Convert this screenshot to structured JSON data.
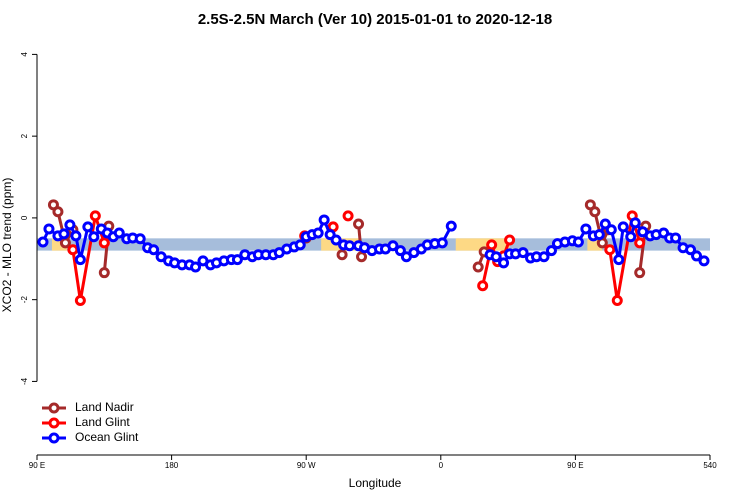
{
  "chart_data": {
    "type": "line",
    "title": "2.5S-2.5N March (Ver 10)   2015-01-01 to 2020-12-18",
    "x_label": "Longitude",
    "y_label": "XCO2 - MLO trend (ppm)",
    "xlim": [
      90,
      540
    ],
    "ylim": [
      -5.8,
      4.45
    ],
    "xticks": [
      {
        "value": 90,
        "label": "90 E"
      },
      180,
      {
        "value": 270,
        "label": "90 W"
      },
      {
        "value": 360,
        "label": "0"
      },
      {
        "value": 450,
        "label": "90 E"
      },
      540
    ],
    "yticks": [
      -4,
      -2,
      0,
      2,
      4
    ],
    "legend": "bottom-left",
    "band": {
      "ylim": [
        -0.5,
        -0.8
      ],
      "color": "#a6bddb",
      "highlight_color": "#fdd985",
      "highlights": [
        [
          100,
          110
        ],
        [
          280,
          306
        ],
        [
          370,
          406
        ],
        [
          458,
          468
        ]
      ]
    },
    "series": [
      {
        "name": "Land Nadir",
        "color": "#a52a2a",
        "x": [
          101,
          104,
          109,
          114,
          null,
          135,
          138,
          null,
          270,
          null,
          294,
          null,
          305,
          307,
          null,
          385,
          389,
          null,
          460,
          463,
          468,
          472,
          null,
          493,
          497
        ],
        "values": [
          0.32,
          0.15,
          -0.61,
          -0.29,
          null,
          -1.34,
          -0.2,
          null,
          -0.49,
          null,
          -0.9,
          null,
          -0.15,
          -0.95,
          null,
          -1.2,
          -0.83,
          null,
          0.32,
          0.15,
          -0.61,
          -0.29,
          null,
          -1.34,
          -0.2
        ]
      },
      {
        "name": "Land Glint",
        "color": "#ff0000",
        "x": [
          114,
          119,
          129,
          135,
          null,
          269,
          null,
          288,
          null,
          298,
          null,
          309,
          null,
          388,
          394,
          398,
          402,
          406,
          null,
          473,
          478,
          488,
          493
        ],
        "values": [
          -0.78,
          -2.02,
          0.05,
          -0.61,
          null,
          -0.44,
          null,
          -0.22,
          null,
          0.05,
          null,
          -0.73,
          null,
          -1.66,
          -0.66,
          -1.07,
          -0.93,
          -0.54,
          null,
          -0.78,
          -2.02,
          0.05,
          -0.61
        ]
      },
      {
        "name": "Ocean Glint",
        "color": "#0000ff",
        "x": [
          94,
          98,
          104,
          108,
          112,
          116,
          119,
          124,
          128,
          133,
          137,
          141,
          145,
          150,
          154,
          159,
          164,
          168,
          173,
          178,
          182,
          187,
          192,
          196,
          201,
          206,
          210,
          215,
          220,
          224,
          229,
          234,
          238,
          243,
          248,
          252,
          257,
          262,
          266,
          270,
          274,
          278,
          282,
          286,
          290,
          295,
          299,
          305,
          309,
          314,
          319,
          323,
          328,
          333,
          337,
          342,
          347,
          351,
          356,
          361,
          367,
          null,
          393,
          397,
          402,
          406,
          410,
          415,
          420,
          424,
          429,
          434,
          438,
          443,
          448,
          452,
          457,
          462,
          466,
          470,
          474,
          479,
          482,
          487,
          490,
          495,
          500,
          504,
          509,
          513,
          517,
          522,
          527,
          531,
          536
        ],
        "values": [
          -0.59,
          -0.27,
          -0.44,
          -0.39,
          -0.17,
          -0.44,
          -1.02,
          -0.22,
          -0.46,
          -0.27,
          -0.37,
          -0.46,
          -0.37,
          -0.51,
          -0.49,
          -0.51,
          -0.73,
          -0.78,
          -0.95,
          -1.05,
          -1.1,
          -1.15,
          -1.15,
          -1.2,
          -1.05,
          -1.15,
          -1.1,
          -1.05,
          -1.02,
          -1.02,
          -0.9,
          -0.95,
          -0.9,
          -0.9,
          -0.9,
          -0.85,
          -0.76,
          -0.71,
          -0.66,
          -0.46,
          -0.41,
          -0.37,
          -0.05,
          -0.41,
          -0.54,
          -0.66,
          -0.68,
          -0.68,
          -0.73,
          -0.8,
          -0.76,
          -0.76,
          -0.68,
          -0.8,
          -0.95,
          -0.85,
          -0.76,
          -0.66,
          -0.63,
          -0.61,
          -0.2,
          null,
          -0.9,
          -0.95,
          -1.1,
          -0.88,
          -0.88,
          -0.85,
          -0.98,
          -0.95,
          -0.95,
          -0.8,
          -0.63,
          -0.59,
          -0.56,
          -0.59,
          -0.27,
          -0.44,
          -0.41,
          -0.15,
          -0.29,
          -1.02,
          -0.22,
          -0.46,
          -0.12,
          -0.34,
          -0.44,
          -0.41,
          -0.37,
          -0.49,
          -0.49,
          -0.73,
          -0.78,
          -0.93,
          -1.05
        ]
      }
    ]
  }
}
